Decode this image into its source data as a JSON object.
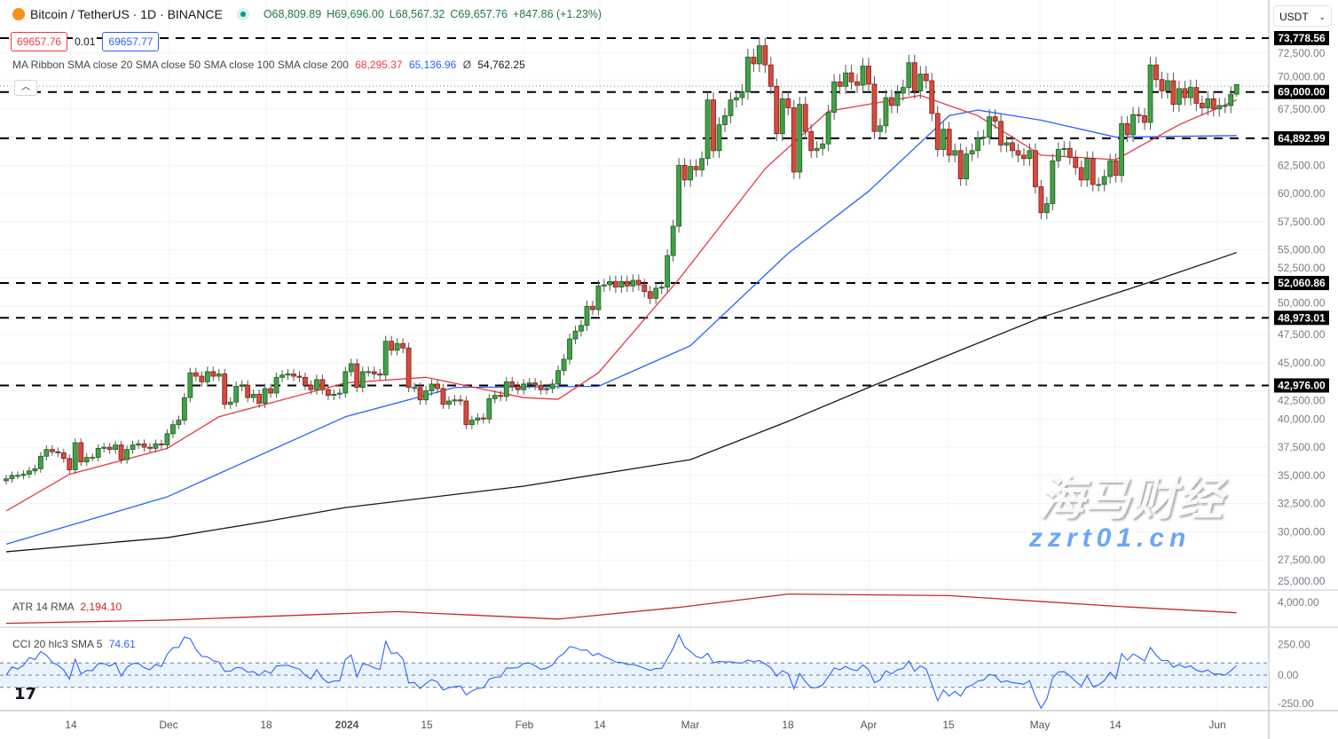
{
  "header": {
    "symbol": "Bitcoin / TetherUS · 1D · BINANCE",
    "open": "O68,809.89",
    "high": "H69,696.00",
    "low": "L68,567.32",
    "close": "C69,657.76",
    "change": "+847.86 (+1.23%)",
    "sell_price": "69657.76",
    "spread": "0.01",
    "buy_price": "69657.77",
    "currency": "USDT"
  },
  "ma_legend": {
    "label": "MA Ribbon SMA close 20 SMA close 50 SMA close 100 SMA close 200",
    "sma20": "68,295.37",
    "sma50": "65,136.96",
    "sma200_symbol": "Ø",
    "sma200": "54,762.25"
  },
  "atr_legend": {
    "label": "ATR 14 RMA",
    "value": "2,194.10"
  },
  "cci_legend": {
    "label": "CCI 20 hlc3 SMA 5",
    "value": "74.61"
  },
  "watermark": {
    "text": "海马财经",
    "url": "zzrt01.cn"
  },
  "colors": {
    "up": "#43a047",
    "down": "#d84a3b",
    "sma20": "#e53945",
    "sma50": "#2962ff",
    "sma200": "#131722",
    "atr": "#c62828",
    "cci": "#2962ff"
  },
  "chart_data": {
    "type": "candlestick",
    "ylim": [
      25000,
      75000
    ],
    "y_ticks": [
      "72,500.00",
      "70,000.00",
      "67,500.00",
      "62,500.00",
      "60,000.00",
      "57,500.00",
      "55,000.00",
      "52,500.00",
      "50,000.00",
      "47,500.00",
      "45,000.00",
      "42,500.00",
      "40,000.00",
      "37,500.00",
      "35,000.00",
      "32,500.00",
      "30,000.00",
      "27,500.00",
      "25,000.00"
    ],
    "x_tick_labels": [
      "14",
      "Dec",
      "18",
      "2024",
      "15",
      "Feb",
      "14",
      "Mar",
      "18",
      "Apr",
      "15",
      "May",
      "14",
      "Jun"
    ],
    "closes": [
      34700,
      35000,
      35000,
      35100,
      35400,
      35600,
      36700,
      37300,
      37100,
      37000,
      36500,
      35500,
      37900,
      36200,
      36600,
      36600,
      37400,
      37500,
      37300,
      37700,
      36400,
      37300,
      37700,
      37800,
      37500,
      37400,
      37800,
      37700,
      38700,
      39500,
      39900,
      41900,
      44100,
      43800,
      43300,
      44200,
      43800,
      44000,
      41300,
      41500,
      42900,
      43000,
      41900,
      42200,
      41400,
      42700,
      42300,
      43700,
      43900,
      44000,
      43800,
      43700,
      43000,
      42600,
      43500,
      42600,
      42100,
      42200,
      42300,
      44200,
      44900,
      42800,
      44200,
      44200,
      44000,
      43900,
      46900,
      46100,
      46700,
      46300,
      42800,
      42800,
      41700,
      42500,
      43100,
      42700,
      41300,
      41600,
      41700,
      41600,
      39500,
      39900,
      40100,
      40000,
      41800,
      42100,
      42000,
      43300,
      42900,
      42600,
      43100,
      43200,
      43000,
      42600,
      42700,
      43100,
      44300,
      45300,
      47100,
      47800,
      48300,
      50000,
      49700,
      51800,
      51900,
      52200,
      51700,
      52200,
      51800,
      52300,
      51900,
      51300,
      50700,
      51600,
      51700,
      54500,
      57100,
      62500,
      61200,
      62400,
      62100,
      63100,
      68300,
      63800,
      66100,
      66900,
      68300,
      68500,
      69000,
      72100,
      71500,
      73100,
      71400,
      69500,
      65300,
      68400,
      67600,
      61900,
      67900,
      65500,
      63800,
      64000,
      64400,
      67200,
      69900,
      69500,
      70700,
      69900,
      69600,
      71300,
      69700,
      65500,
      66000,
      68500,
      67800,
      68900,
      69400,
      71600,
      69100,
      70600,
      70000,
      67100,
      63900,
      65700,
      63400,
      63800,
      61300,
      63500,
      63800,
      64900,
      65000,
      66800,
      66400,
      64300,
      64500,
      63800,
      63400,
      63100,
      63800,
      60600,
      58300,
      59100,
      62900,
      63900,
      64000,
      63200,
      62300,
      61200,
      63100,
      60800,
      60800,
      61500,
      62900,
      61600,
      66200,
      65200,
      67000,
      66900,
      66300,
      71400,
      70100,
      69100,
      70000,
      67900,
      69300,
      68500,
      69400,
      68000,
      67600,
      68400,
      67500,
      67800,
      67800,
      68800,
      69657.76
    ],
    "last_open": 68809.89,
    "last_high": 69696.0,
    "last_low": 68567.32,
    "sma20": [
      [
        "2023-11-03",
        31850
      ],
      [
        "2023-11-14",
        35100
      ],
      [
        "2023-12-01",
        37400
      ],
      [
        "2023-12-10",
        40200
      ],
      [
        "2024-01-01",
        43200
      ],
      [
        "2024-01-15",
        43700
      ],
      [
        "2024-02-01",
        41900
      ],
      [
        "2024-02-07",
        41750
      ],
      [
        "2024-02-14",
        44100
      ],
      [
        "2024-02-28",
        52400
      ],
      [
        "2024-03-14",
        62200
      ],
      [
        "2024-03-25",
        67300
      ],
      [
        "2024-04-10",
        68700
      ],
      [
        "2024-04-20",
        66900
      ],
      [
        "2024-05-01",
        63400
      ],
      [
        "2024-05-14",
        63000
      ],
      [
        "2024-05-25",
        66100
      ],
      [
        "2024-06-04",
        68295.37
      ]
    ],
    "sma50": [
      [
        "2023-11-03",
        28900
      ],
      [
        "2023-12-01",
        33100
      ],
      [
        "2024-01-01",
        40200
      ],
      [
        "2024-01-20",
        42800
      ],
      [
        "2024-02-14",
        42900
      ],
      [
        "2024-03-01",
        46500
      ],
      [
        "2024-03-18",
        54700
      ],
      [
        "2024-04-01",
        60200
      ],
      [
        "2024-04-15",
        66900
      ],
      [
        "2024-04-20",
        67400
      ],
      [
        "2024-05-01",
        66500
      ],
      [
        "2024-05-14",
        65000
      ],
      [
        "2024-06-04",
        65136.96
      ]
    ],
    "sma200": [
      [
        "2023-11-03",
        28230
      ],
      [
        "2023-12-01",
        29480
      ],
      [
        "2023-12-18",
        30900
      ],
      [
        "2024-01-01",
        32150
      ],
      [
        "2024-02-01",
        34050
      ],
      [
        "2024-03-01",
        36400
      ],
      [
        "2024-03-18",
        39800
      ],
      [
        "2024-04-01",
        42800
      ],
      [
        "2024-05-01",
        49000
      ],
      [
        "2024-05-20",
        52150
      ],
      [
        "2024-06-04",
        54762.25
      ]
    ],
    "levels": [
      "73,778.56",
      "69,000.00",
      "64,892.99",
      "52,060.86",
      "48,973.01",
      "42,976.00"
    ],
    "level_values": [
      73778.56,
      69000,
      64892.99,
      52060.86,
      48973.01,
      42976.0
    ],
    "atr": {
      "tick": "4,000.00",
      "points": [
        [
          "2023-11-03",
          1200
        ],
        [
          "2023-12-01",
          1500
        ],
        [
          "2024-01-10",
          2300
        ],
        [
          "2024-02-07",
          1600
        ],
        [
          "2024-02-28",
          2700
        ],
        [
          "2024-03-18",
          3950
        ],
        [
          "2024-04-15",
          3800
        ],
        [
          "2024-05-14",
          2800
        ],
        [
          "2024-06-04",
          2194.1
        ]
      ]
    },
    "cci": {
      "ticks": [
        "250.00",
        "0.00",
        "-250.00"
      ],
      "band": [
        -100,
        100
      ]
    }
  }
}
